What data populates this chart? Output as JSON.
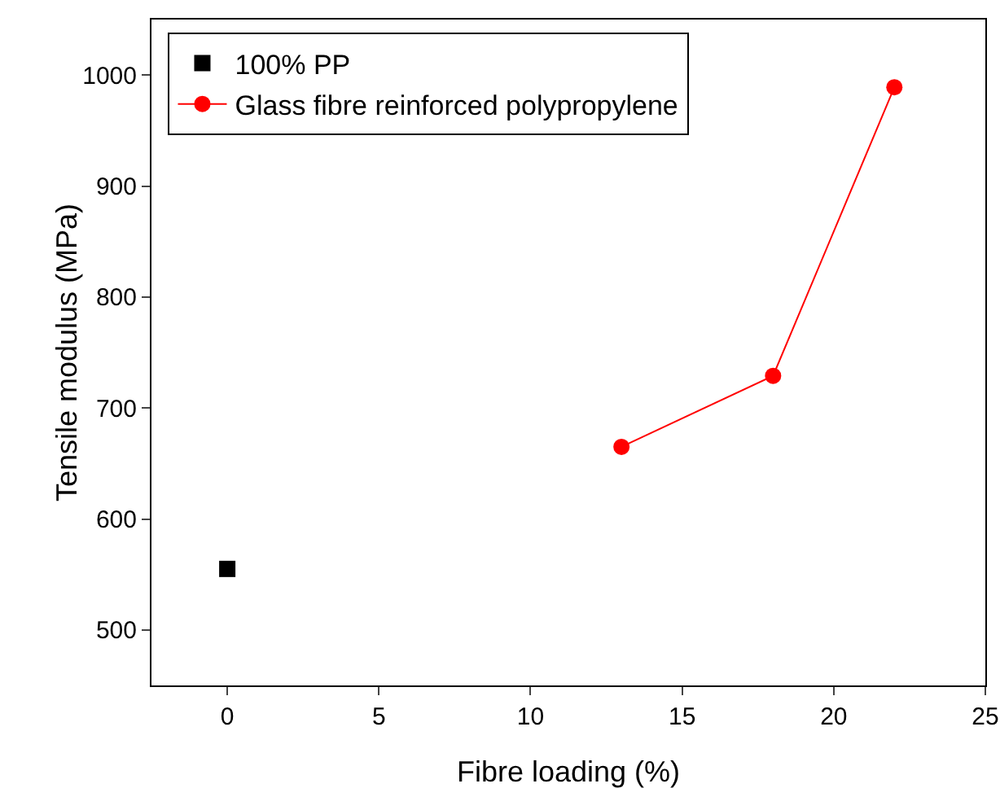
{
  "chart_data": {
    "type": "scatter",
    "xlabel": "Fibre loading (%)",
    "ylabel": "Tensile modulus (MPa)",
    "xlim": [
      -2.5,
      25
    ],
    "xticks": [
      0,
      5,
      10,
      15,
      20,
      25
    ],
    "ylim": [
      450,
      1050
    ],
    "yticks": [
      500,
      600,
      700,
      800,
      900,
      1000
    ],
    "grid": false,
    "legend": "top",
    "series": [
      {
        "name": "100% PP",
        "color": "#000000",
        "marker": "square",
        "x": [
          0
        ],
        "values": [
          555
        ]
      },
      {
        "name": "Glass fibre reinforced polypropylene",
        "color": "#ff0000",
        "type": "line",
        "marker": "circle",
        "x": [
          13,
          18,
          22
        ],
        "values": [
          665,
          729,
          989
        ]
      }
    ]
  }
}
